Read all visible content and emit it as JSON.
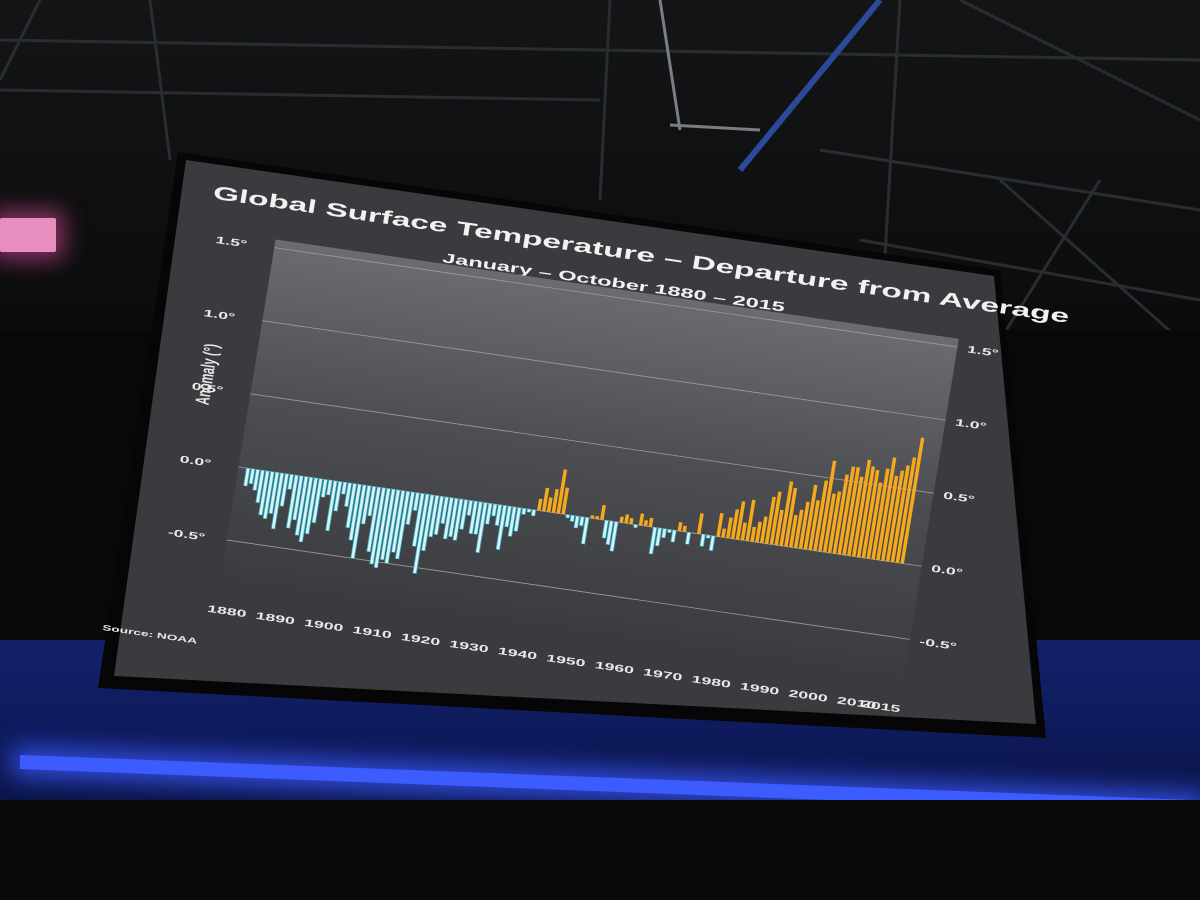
{
  "slide": {
    "title": "Global Surface Temperature – Departure from Average",
    "subtitle": "January – October 1880 – 2015",
    "source": "Source: NOAA",
    "y_label": "Anomaly (°)"
  },
  "chart_data": {
    "type": "bar",
    "title": "Global Surface Temperature – Departure from Average",
    "subtitle": "January – October 1880 – 2015",
    "ylabel": "Anomaly (°)",
    "xlim": [
      1880,
      2015
    ],
    "ylim": [
      -0.7,
      1.5
    ],
    "grid": true,
    "colors": {
      "negative": "#d9f2f6",
      "negative_edge": "#2fb0c6",
      "positive": "#f6a91c"
    },
    "x_ticks": [
      "1880",
      "1890",
      "1900",
      "1910",
      "1920",
      "1930",
      "1940",
      "1950",
      "1960",
      "1970",
      "1980",
      "1990",
      "2000",
      "2010",
      "2015"
    ],
    "y_ticks_left": [
      "1.5°",
      "1.0°",
      "0.5°",
      "0.0°",
      "-0.5°"
    ],
    "y_ticks_right": [
      "1.5°",
      "1.0°",
      "0.5°",
      "0.0°",
      "-0.5°"
    ],
    "years": [
      1880,
      1881,
      1882,
      1883,
      1884,
      1885,
      1886,
      1887,
      1888,
      1889,
      1890,
      1891,
      1892,
      1893,
      1894,
      1895,
      1896,
      1897,
      1898,
      1899,
      1900,
      1901,
      1902,
      1903,
      1904,
      1905,
      1906,
      1907,
      1908,
      1909,
      1910,
      1911,
      1912,
      1913,
      1914,
      1915,
      1916,
      1917,
      1918,
      1919,
      1920,
      1921,
      1922,
      1923,
      1924,
      1925,
      1926,
      1927,
      1928,
      1929,
      1930,
      1931,
      1932,
      1933,
      1934,
      1935,
      1936,
      1937,
      1938,
      1939,
      1940,
      1941,
      1942,
      1943,
      1944,
      1945,
      1946,
      1947,
      1948,
      1949,
      1950,
      1951,
      1952,
      1953,
      1954,
      1955,
      1956,
      1957,
      1958,
      1959,
      1960,
      1961,
      1962,
      1963,
      1964,
      1965,
      1966,
      1967,
      1968,
      1969,
      1970,
      1971,
      1972,
      1973,
      1974,
      1975,
      1976,
      1977,
      1978,
      1979,
      1980,
      1981,
      1982,
      1983,
      1984,
      1985,
      1986,
      1987,
      1988,
      1989,
      1990,
      1991,
      1992,
      1993,
      1994,
      1995,
      1996,
      1997,
      1998,
      1999,
      2000,
      2001,
      2002,
      2003,
      2004,
      2005,
      2006,
      2007,
      2008,
      2009,
      2010,
      2011,
      2012,
      2013,
      2014,
      2015
    ],
    "values": [
      -0.12,
      -0.1,
      -0.14,
      -0.22,
      -0.3,
      -0.32,
      -0.28,
      -0.38,
      -0.22,
      -0.1,
      -0.36,
      -0.3,
      -0.4,
      -0.44,
      -0.38,
      -0.3,
      -0.12,
      -0.1,
      -0.34,
      -0.2,
      -0.08,
      -0.16,
      -0.3,
      -0.38,
      -0.5,
      -0.26,
      -0.2,
      -0.44,
      -0.52,
      -0.54,
      -0.48,
      -0.5,
      -0.42,
      -0.46,
      -0.22,
      -0.12,
      -0.36,
      -0.54,
      -0.38,
      -0.28,
      -0.26,
      -0.18,
      -0.28,
      -0.26,
      -0.28,
      -0.2,
      -0.1,
      -0.22,
      -0.22,
      -0.34,
      -0.14,
      -0.08,
      -0.14,
      -0.3,
      -0.14,
      -0.2,
      -0.16,
      -0.04,
      -0.02,
      -0.04,
      0.08,
      0.16,
      0.1,
      0.16,
      0.3,
      0.18,
      -0.02,
      -0.04,
      -0.08,
      -0.06,
      -0.18,
      0.02,
      0.02,
      0.1,
      -0.12,
      -0.16,
      -0.2,
      0.04,
      0.06,
      0.04,
      -0.02,
      0.08,
      0.04,
      0.06,
      -0.18,
      -0.12,
      -0.06,
      -0.02,
      -0.08,
      0.06,
      0.04,
      -0.08,
      0.0,
      0.14,
      -0.08,
      -0.02,
      -0.1,
      0.16,
      0.06,
      0.14,
      0.2,
      0.26,
      0.12,
      0.28,
      0.1,
      0.14,
      0.18,
      0.32,
      0.36,
      0.24,
      0.44,
      0.4,
      0.22,
      0.26,
      0.32,
      0.44,
      0.34,
      0.48,
      0.62,
      0.4,
      0.42,
      0.54,
      0.6,
      0.6,
      0.54,
      0.66,
      0.62,
      0.6,
      0.52,
      0.62,
      0.7,
      0.58,
      0.62,
      0.66,
      0.72,
      0.86
    ]
  }
}
